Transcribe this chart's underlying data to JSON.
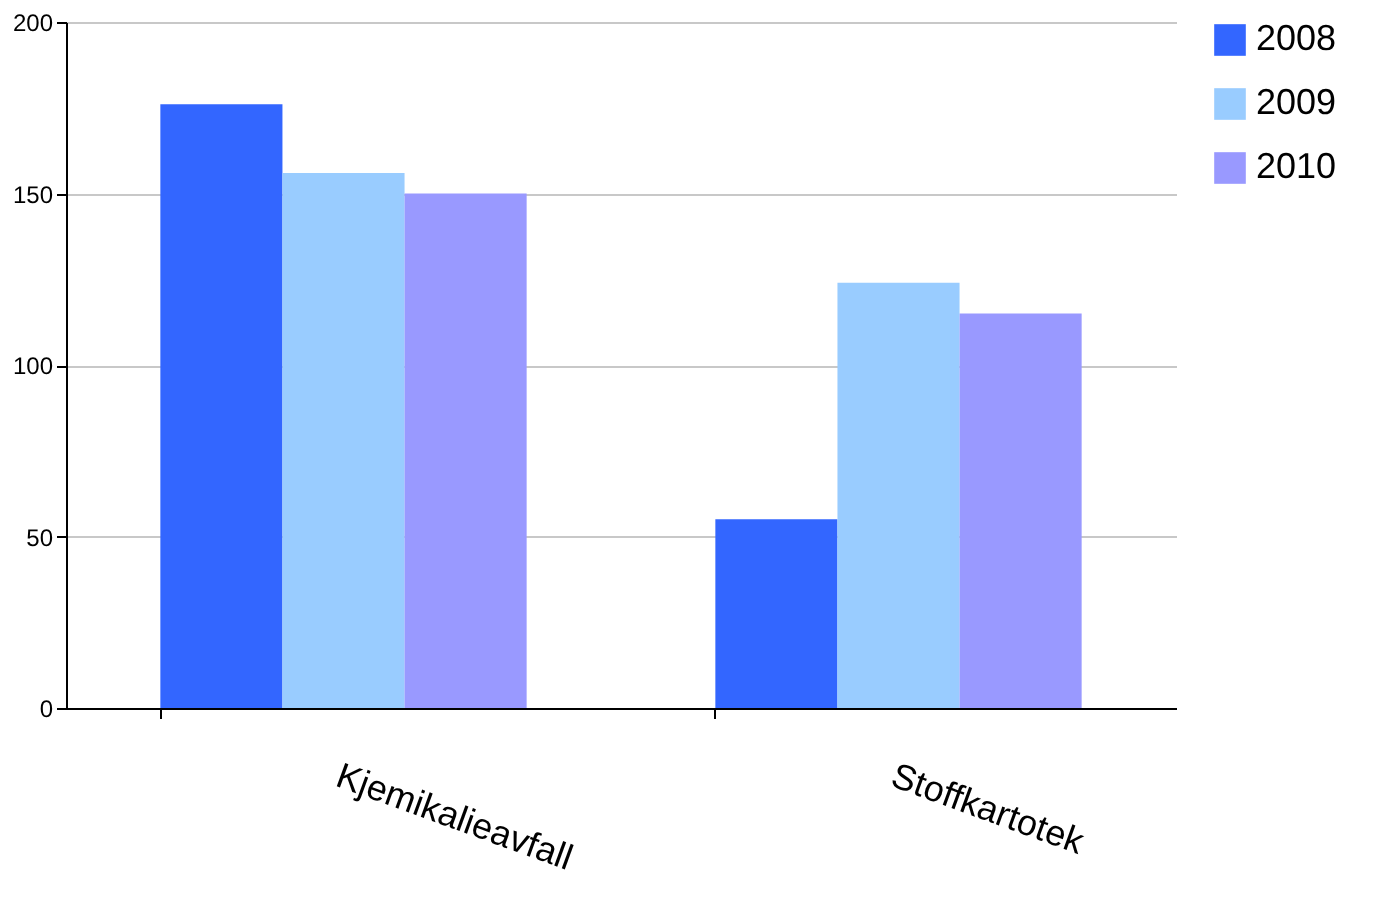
{
  "chart_data": {
    "type": "bar",
    "categories": [
      "Kjemikalieavfall",
      "Stoffkartotek"
    ],
    "series": [
      {
        "name": "2008",
        "color": "#3366ff",
        "values": [
          176,
          55
        ]
      },
      {
        "name": "2009",
        "color": "#99ccff",
        "values": [
          156,
          124
        ]
      },
      {
        "name": "2010",
        "color": "#9999ff",
        "values": [
          150,
          115
        ]
      }
    ],
    "ylim": [
      0,
      200
    ],
    "yticks": [
      0,
      50,
      100,
      150,
      200
    ],
    "grid": "y",
    "legend": "right"
  }
}
